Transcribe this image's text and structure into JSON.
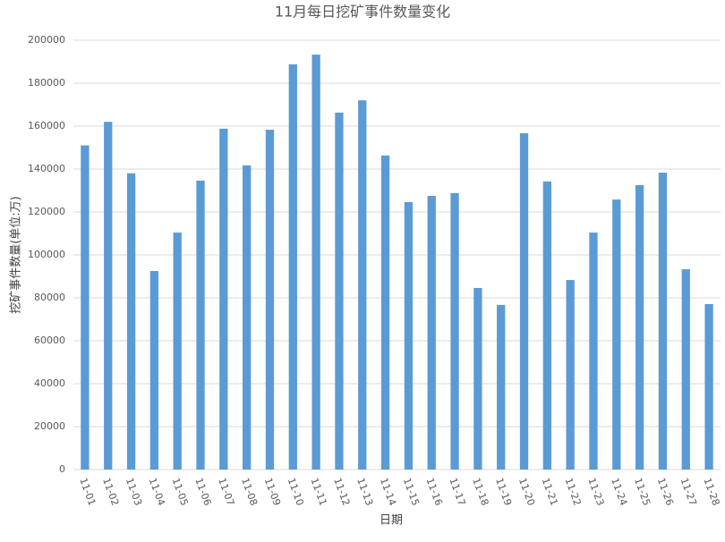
{
  "chart_data": {
    "type": "bar",
    "title": "11月每日挖矿事件数量变化",
    "x_label": "日期",
    "y_label": "挖矿事件数量(单位:万)",
    "categories": [
      "11-01",
      "11-02",
      "11-03",
      "11-04",
      "11-05",
      "11-06",
      "11-07",
      "11-08",
      "11-09",
      "11-10",
      "11-11",
      "11-12",
      "11-13",
      "11-14",
      "11-15",
      "11-16",
      "11-17",
      "11-18",
      "11-19",
      "11-20",
      "11-21",
      "11-22",
      "11-23",
      "11-24",
      "11-25",
      "11-26",
      "11-27",
      "11-28"
    ],
    "values": [
      151000,
      162000,
      138000,
      92500,
      110400,
      134600,
      158800,
      141700,
      158300,
      188800,
      193300,
      166300,
      172000,
      146300,
      124600,
      127500,
      128800,
      84600,
      76700,
      156700,
      134200,
      88300,
      110400,
      125800,
      132500,
      138300,
      93300,
      77100
    ],
    "color": "#5b9bd5",
    "ylim": [
      0,
      200000
    ],
    "yticks": [
      0,
      20000,
      40000,
      60000,
      80000,
      100000,
      120000,
      140000,
      160000,
      180000,
      200000
    ],
    "grid": true
  }
}
